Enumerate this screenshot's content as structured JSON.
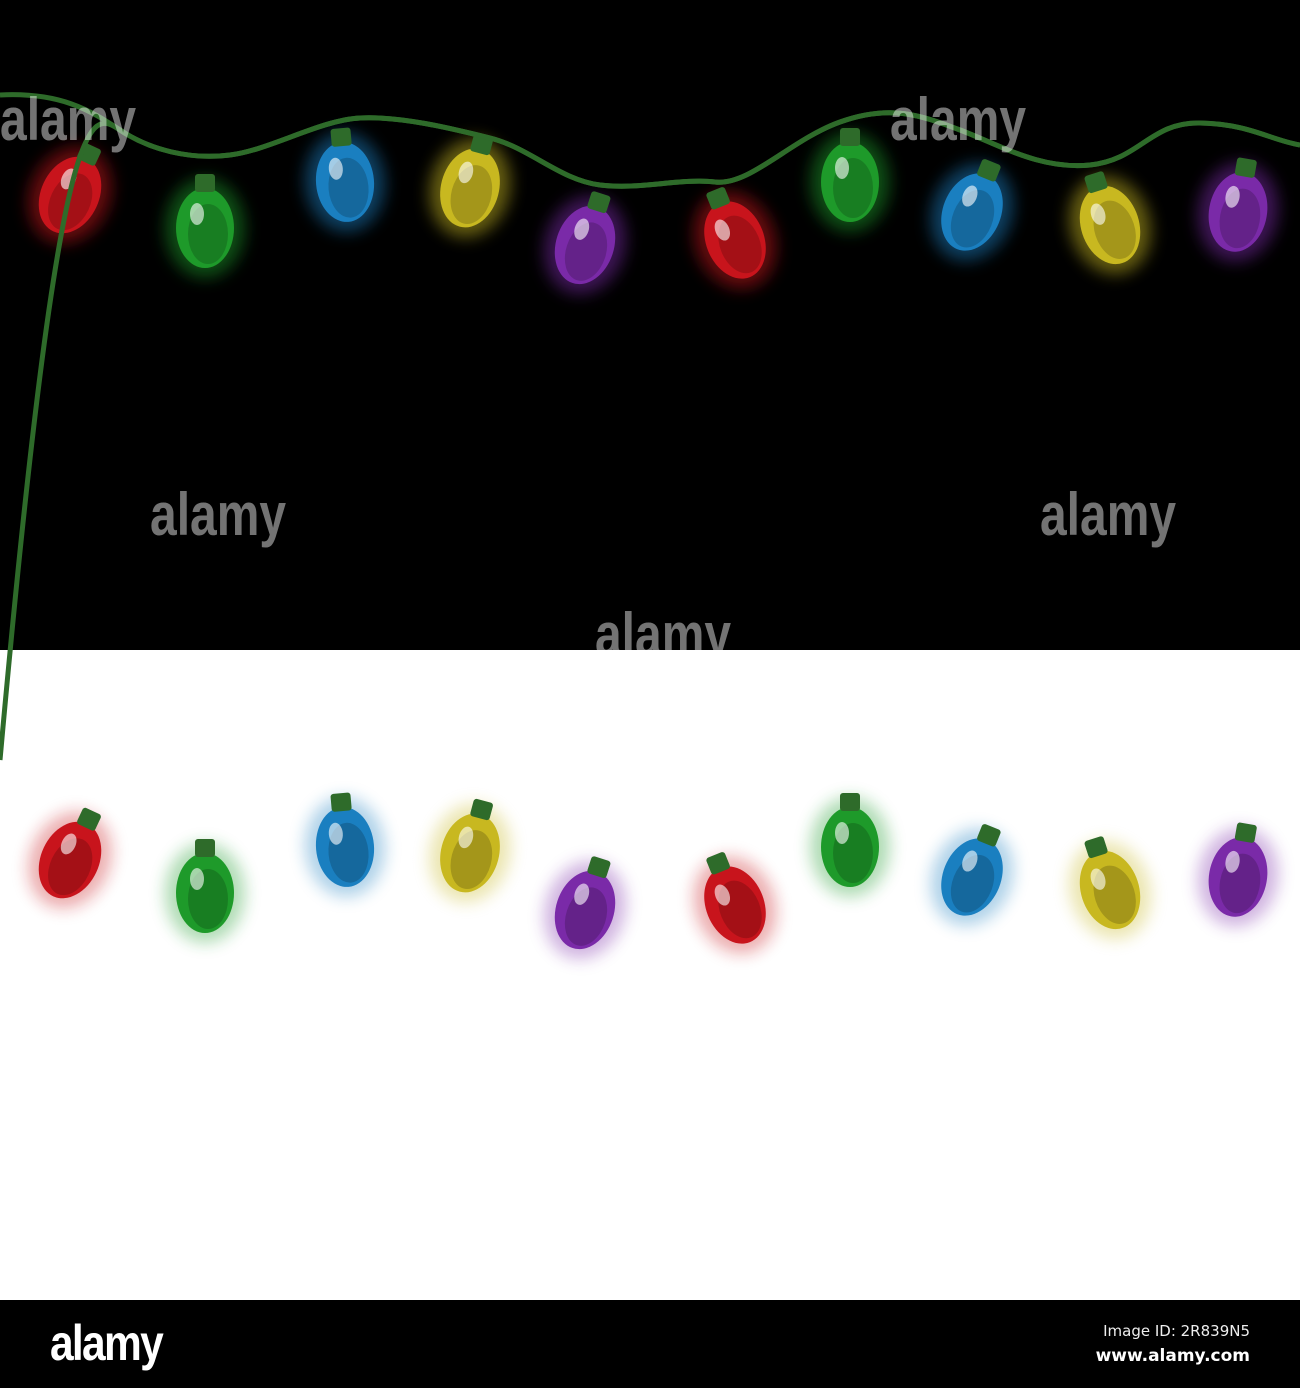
{
  "panels": [
    {
      "background": "#000000",
      "wire_color": "#2e6b2a"
    },
    {
      "background": "#ffffff",
      "wire_color": "#2e6b2a"
    }
  ],
  "bulbs": [
    {
      "color": "red",
      "hex": "#c8141c"
    },
    {
      "color": "green",
      "hex": "#1e9a2a"
    },
    {
      "color": "blue",
      "hex": "#1a7fc0"
    },
    {
      "color": "yellow",
      "hex": "#c8b820"
    },
    {
      "color": "purple",
      "hex": "#7a2aa8"
    },
    {
      "color": "red",
      "hex": "#c8141c"
    },
    {
      "color": "green",
      "hex": "#1e9a2a"
    },
    {
      "color": "blue",
      "hex": "#1a7fc0"
    },
    {
      "color": "yellow",
      "hex": "#c8b820"
    },
    {
      "color": "purple",
      "hex": "#7a2aa8"
    }
  ],
  "watermark": "alamy",
  "footer": {
    "logo": "alamy",
    "image_id": "Image ID: 2R839N5",
    "site": "www.alamy.com"
  }
}
